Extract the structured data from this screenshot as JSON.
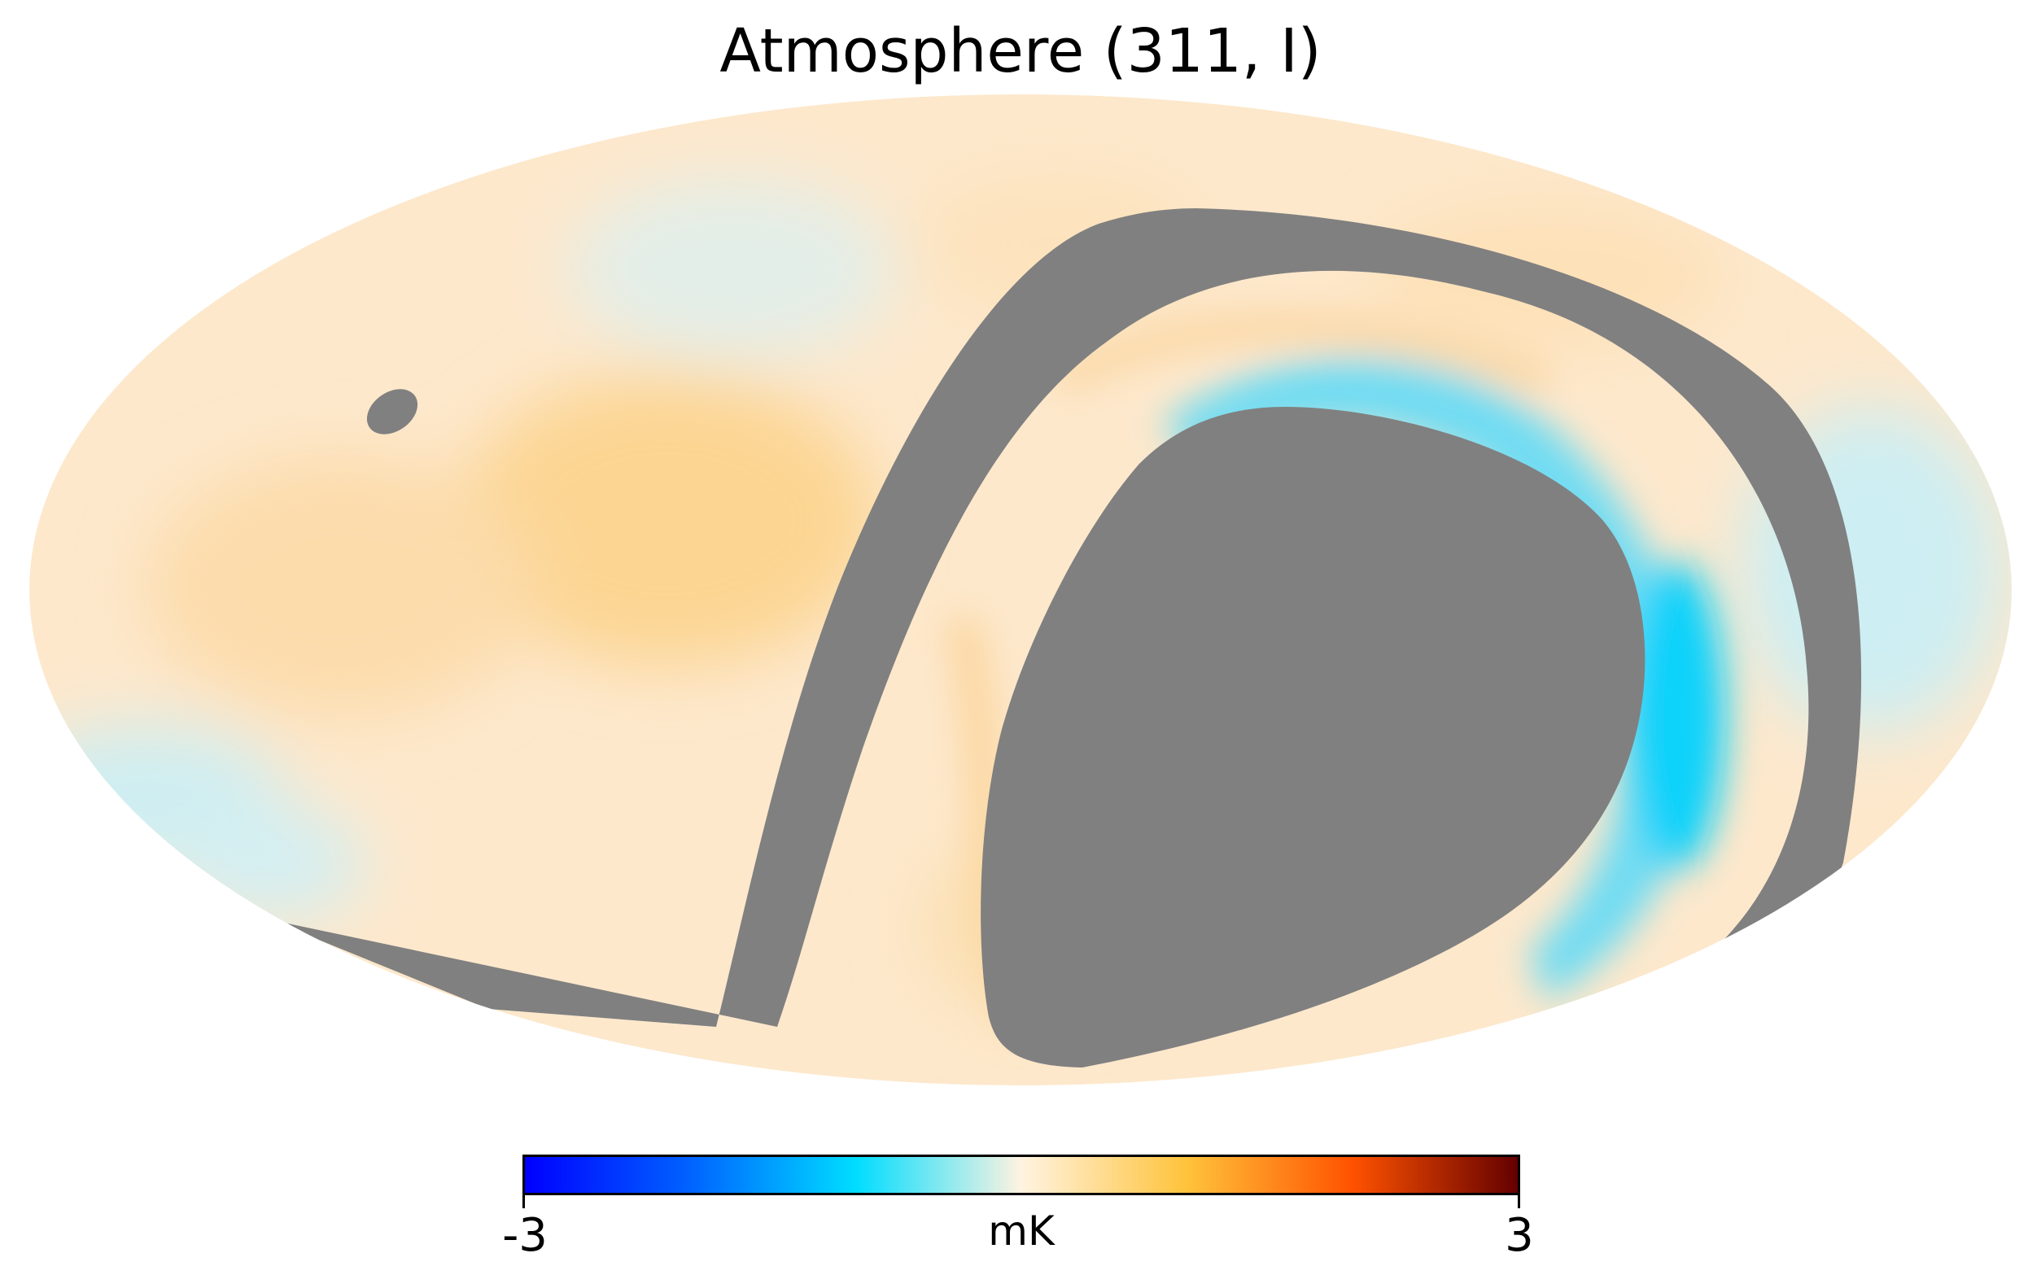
{
  "title": "Atmosphere (311, I)",
  "map": {
    "projection": "mollweide",
    "masked_color": "#808080",
    "regions": [
      "small-mask-spot",
      "curved-mask-band",
      "large-mask-region"
    ]
  },
  "colorbar": {
    "min_label": "-3",
    "max_label": "3",
    "unit": "mK",
    "min": -3,
    "max": 3,
    "colors": [
      "#0000ff",
      "#0063ff",
      "#00ddff",
      "#fff3e1",
      "#ffc33b",
      "#ff5200",
      "#640000"
    ]
  }
}
